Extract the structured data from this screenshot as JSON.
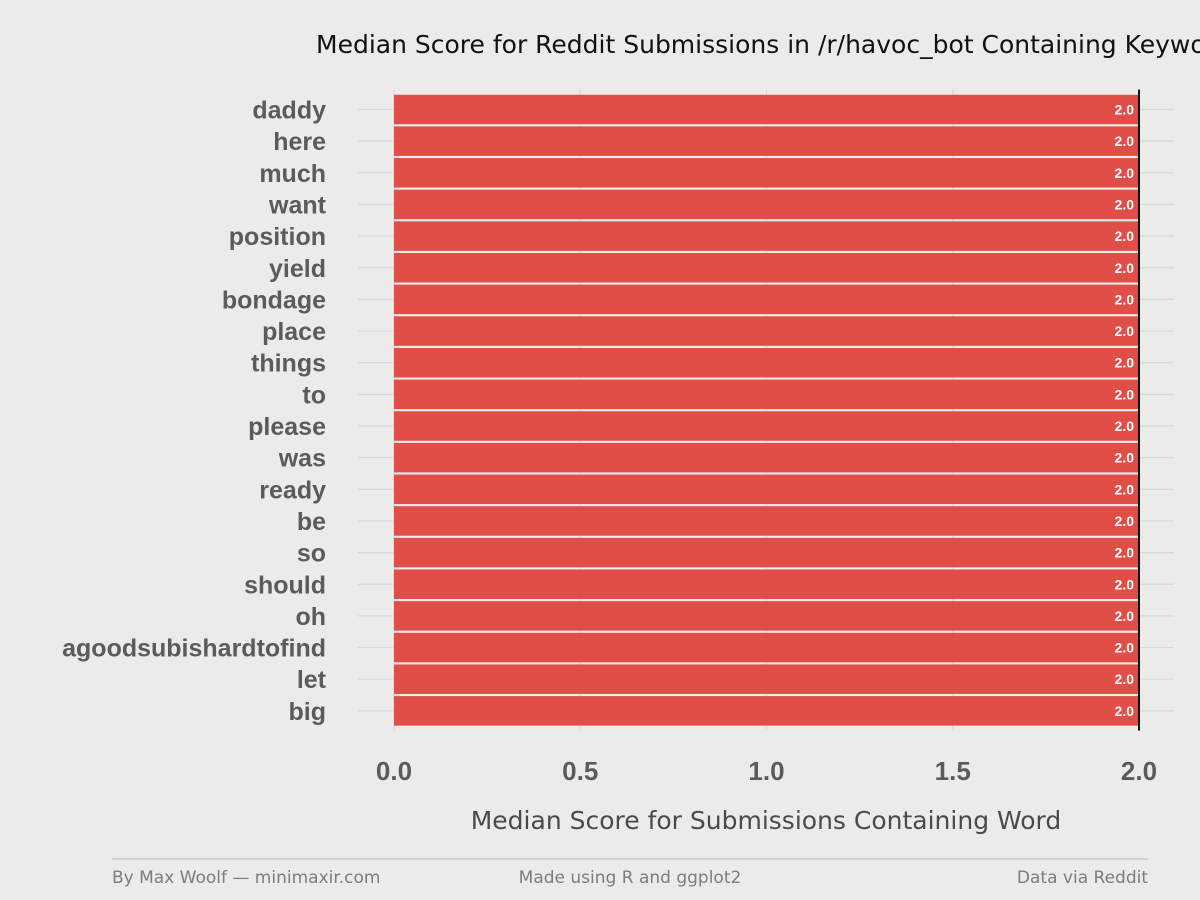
{
  "chart_data": {
    "type": "bar",
    "orientation": "horizontal",
    "title": "Median Score for Reddit Submissions in /r/havoc_bot Containing Keywor",
    "xlabel": "Median Score for Submissions Containing Word",
    "ylabel": "",
    "categories": [
      "daddy",
      "here",
      "much",
      "want",
      "position",
      "yield",
      "bondage",
      "place",
      "things",
      "to",
      "please",
      "was",
      "ready",
      "be",
      "so",
      "should",
      "oh",
      "agoodsubishardtofind",
      "let",
      "big"
    ],
    "values": [
      2.0,
      2.0,
      2.0,
      2.0,
      2.0,
      2.0,
      2.0,
      2.0,
      2.0,
      2.0,
      2.0,
      2.0,
      2.0,
      2.0,
      2.0,
      2.0,
      2.0,
      2.0,
      2.0,
      2.0
    ],
    "value_labels": [
      "2.0",
      "2.0",
      "2.0",
      "2.0",
      "2.0",
      "2.0",
      "2.0",
      "2.0",
      "2.0",
      "2.0",
      "2.0",
      "2.0",
      "2.0",
      "2.0",
      "2.0",
      "2.0",
      "2.0",
      "2.0",
      "2.0",
      "2.0"
    ],
    "xlim": [
      0,
      2
    ],
    "xticks": [
      0,
      0.5,
      1,
      1.5,
      2
    ],
    "xtick_labels": [
      "0.0",
      "0.5",
      "1.0",
      "1.5",
      "2.0"
    ],
    "bar_color": "#e0443e",
    "background_color": "#ebebeb",
    "grid": true,
    "legend": "none"
  },
  "footer": {
    "left": "By Max Woolf — minimaxir.com",
    "center": "Made using R and ggplot2",
    "right": "Data via Reddit"
  }
}
